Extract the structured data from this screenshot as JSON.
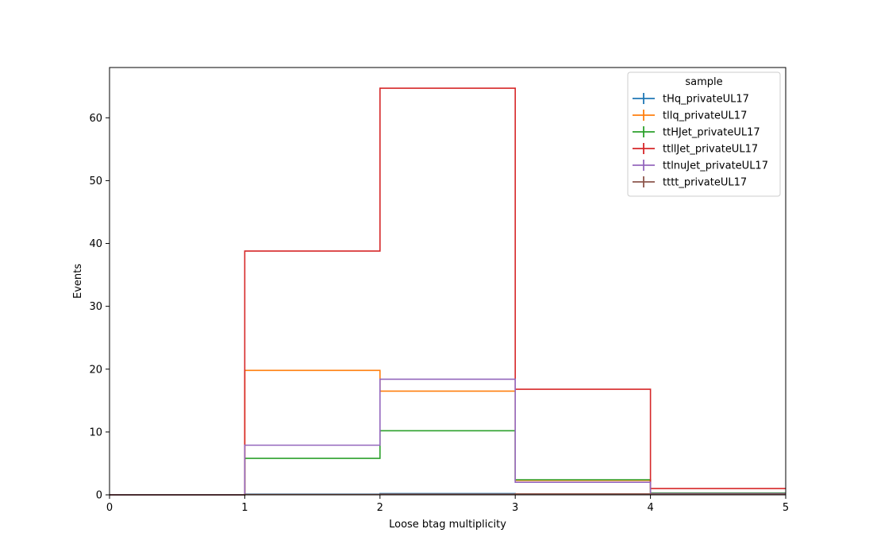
{
  "chart_data": {
    "type": "histogram-step",
    "title": "",
    "xlabel": "Loose btag multiplicity",
    "ylabel": "Events",
    "xlim": [
      0,
      5
    ],
    "ylim": [
      0,
      68
    ],
    "bin_edges": [
      0,
      1,
      2,
      3,
      4,
      5
    ],
    "x_ticks": [
      "0",
      "1",
      "2",
      "3",
      "4",
      "5"
    ],
    "y_ticks": [
      0,
      10,
      20,
      30,
      40,
      50,
      60
    ],
    "y_tick_labels": [
      "0",
      "10",
      "20",
      "30",
      "40",
      "50",
      "60"
    ],
    "grid": false,
    "legend": {
      "title": "sample",
      "placement": "top-right"
    },
    "series": [
      {
        "name": "tHq_privateUL17",
        "color": "#1f77b4",
        "values": [
          0,
          0.1,
          0.2,
          0.1,
          0.05
        ]
      },
      {
        "name": "tllq_privateUL17",
        "color": "#ff7f0e",
        "values": [
          0,
          19.8,
          16.5,
          2.3,
          0.2
        ]
      },
      {
        "name": "ttHJet_privateUL17",
        "color": "#2ca02c",
        "values": [
          0,
          5.8,
          10.2,
          2.4,
          0.3
        ]
      },
      {
        "name": "ttllJet_privateUL17",
        "color": "#d62728",
        "values": [
          0,
          38.8,
          64.7,
          16.8,
          1.0
        ]
      },
      {
        "name": "ttlnuJet_privateUL17",
        "color": "#9467bd",
        "values": [
          0,
          7.9,
          18.4,
          2.0,
          0.2
        ]
      },
      {
        "name": "tttt_privateUL17",
        "color": "#8c564b",
        "values": [
          0,
          0.05,
          0.1,
          0.15,
          0.1
        ]
      }
    ]
  }
}
